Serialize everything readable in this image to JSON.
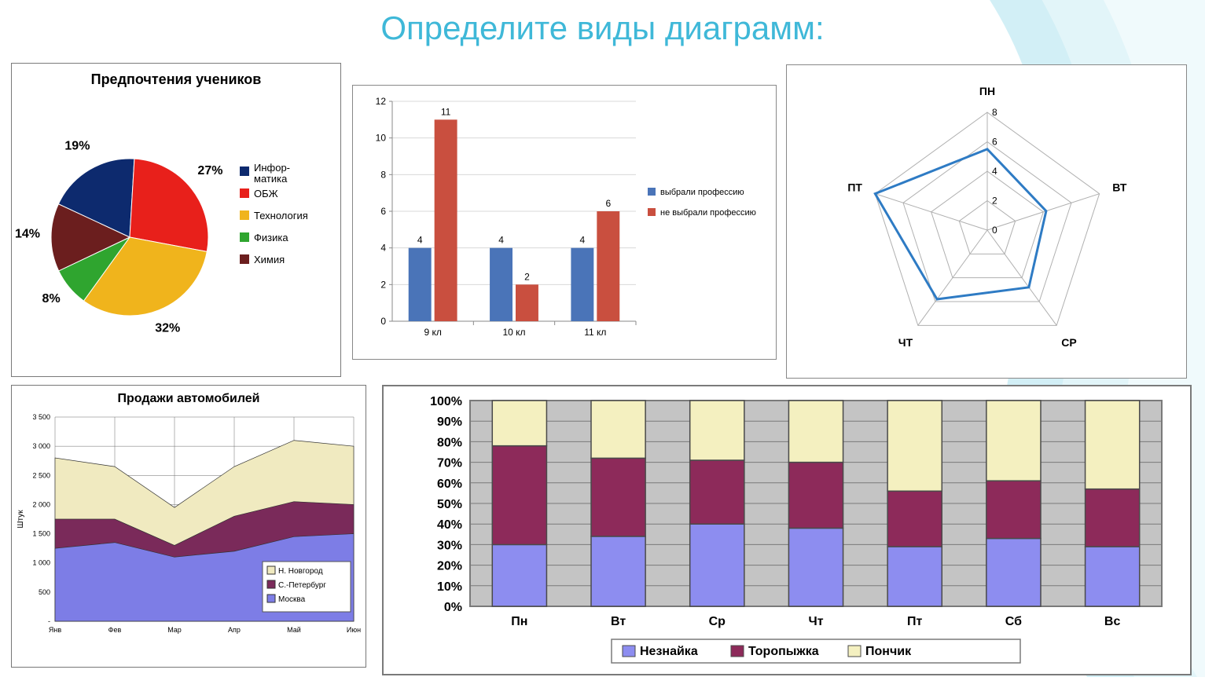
{
  "page": {
    "title": "Определите виды диаграмм:",
    "title_color": "#3fb8d8",
    "title_fontsize": 42
  },
  "pie_chart": {
    "type": "pie",
    "title": "Предпочтения учеников",
    "slices": [
      {
        "label": "Инфор-матика",
        "value": 19,
        "color": "#0d2a6e",
        "pct_label": "19%"
      },
      {
        "label": "ОБЖ",
        "value": 27,
        "color": "#e8201b",
        "pct_label": "27%"
      },
      {
        "label": "Технология",
        "value": 32,
        "color": "#f0b41c",
        "pct_label": "32%"
      },
      {
        "label": "Физика",
        "value": 8,
        "color": "#2fa52f",
        "pct_label": "8%"
      },
      {
        "label": "Химия",
        "value": 14,
        "color": "#6b1e1e",
        "pct_label": "14%"
      }
    ],
    "legend_swatch_size": 12,
    "label_fontsize": 16
  },
  "bar_chart": {
    "type": "bar",
    "categories": [
      "9 кл",
      "10 кл",
      "11 кл"
    ],
    "series": [
      {
        "name": "выбрали профессию",
        "color": "#4a74b8",
        "values": [
          4,
          4,
          4
        ]
      },
      {
        "name": "не выбрали профессию",
        "color": "#c94f3f",
        "values": [
          11,
          2,
          6
        ]
      }
    ],
    "ylim": [
      0,
      12
    ],
    "ytick_step": 2,
    "bar_width": 0.35,
    "grid_color": "#d8d8d8",
    "axis_color": "#8a8a8a",
    "label_fontsize": 12
  },
  "radar_chart": {
    "type": "radar",
    "axes": [
      "ПН",
      "ВТ",
      "СР",
      "ЧТ",
      "ПТ"
    ],
    "values": [
      5.5,
      4.2,
      4.8,
      5.8,
      8
    ],
    "max": 8,
    "tick_step": 2,
    "ticks": [
      0,
      2,
      4,
      6,
      8
    ],
    "grid_color": "#b0b0b0",
    "line_color": "#2e7bc4",
    "line_width": 3,
    "label_fontsize": 14
  },
  "area_chart": {
    "type": "area",
    "title": "Продажи автомобилей",
    "ylabel": "Штук",
    "categories": [
      "Янв",
      "Фев",
      "Мар",
      "Апр",
      "Май",
      "Июн"
    ],
    "series": [
      {
        "name": "Москва",
        "color": "#7d7de6",
        "values": [
          1250,
          1350,
          1100,
          1200,
          1450,
          1500
        ]
      },
      {
        "name": "С.-Петербург",
        "color": "#7a2a5a",
        "values": [
          500,
          400,
          200,
          600,
          600,
          500
        ]
      },
      {
        "name": "Н. Новгород",
        "color": "#f0eac0",
        "values": [
          1050,
          900,
          650,
          850,
          1050,
          1000
        ]
      }
    ],
    "ylim": [
      0,
      3500
    ],
    "ytick_step": 500,
    "yticks_labels": [
      "-",
      "500",
      "1 000",
      "1 500",
      "2 000",
      "2 500",
      "3 000",
      "3 500"
    ],
    "grid_color": "#6a6a6a",
    "label_fontsize": 9
  },
  "stacked_chart": {
    "type": "stacked_bar_100",
    "categories": [
      "Пн",
      "Вт",
      "Ср",
      "Чт",
      "Пт",
      "Сб",
      "Вс"
    ],
    "series": [
      {
        "name": "Незнайка",
        "color": "#8d8df0",
        "values": [
          30,
          34,
          40,
          38,
          29,
          33,
          29
        ]
      },
      {
        "name": "Торопыжка",
        "color": "#8d2a5a",
        "values": [
          48,
          38,
          31,
          32,
          27,
          28,
          28
        ]
      },
      {
        "name": "Пончик",
        "color": "#f4f0c0",
        "values": [
          22,
          28,
          29,
          30,
          44,
          39,
          43
        ]
      }
    ],
    "ylim": [
      0,
      100
    ],
    "ytick_step": 10,
    "yticks_labels": [
      "0%",
      "10%",
      "20%",
      "30%",
      "40%",
      "50%",
      "60%",
      "70%",
      "80%",
      "90%",
      "100%"
    ],
    "plot_bg": "#c4c4c4",
    "grid_color": "#7a7a7a",
    "bar_border": "#4a4a4a",
    "label_fontsize": 16
  }
}
